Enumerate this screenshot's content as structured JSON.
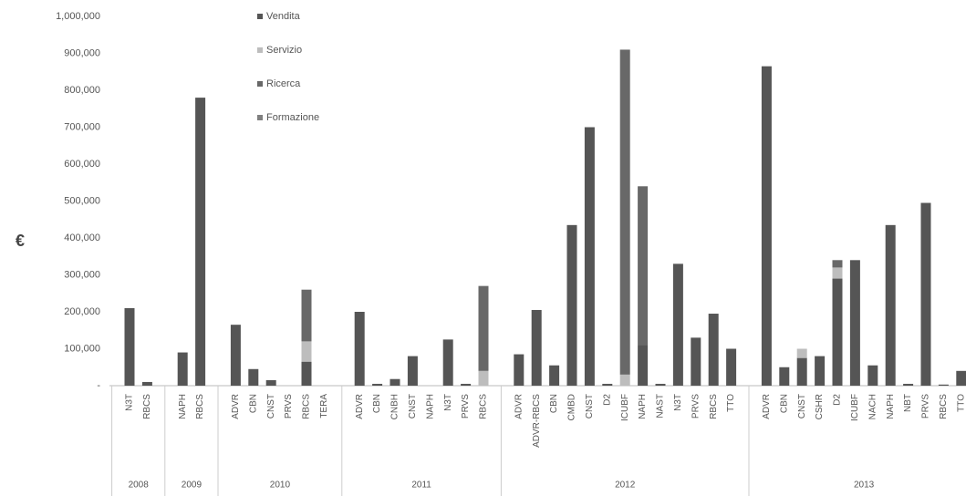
{
  "chart_data": {
    "type": "stacked-bar",
    "y_label": "€",
    "ylim": [
      0,
      1000000
    ],
    "yticks": [
      {
        "value": 0,
        "label": "-"
      },
      {
        "value": 100000,
        "label": "100,000"
      },
      {
        "value": 200000,
        "label": "200,000"
      },
      {
        "value": 300000,
        "label": "300,000"
      },
      {
        "value": 400000,
        "label": "400,000"
      },
      {
        "value": 500000,
        "label": "500,000"
      },
      {
        "value": 600000,
        "label": "600,000"
      },
      {
        "value": 700000,
        "label": "700,000"
      },
      {
        "value": 800000,
        "label": "800,000"
      },
      {
        "value": 900000,
        "label": "900,000"
      },
      {
        "value": 1000000,
        "label": "1,000,000"
      }
    ],
    "groups": [
      {
        "label": "2008",
        "categories": [
          "N3T",
          "RBCS"
        ]
      },
      {
        "label": "2009",
        "categories": [
          "NAPH",
          "RBCS"
        ]
      },
      {
        "label": "2010",
        "categories": [
          "ADVR",
          "CBN",
          "CNST",
          "PRVS",
          "RBCS",
          "TERA"
        ]
      },
      {
        "label": "2011",
        "categories": [
          "ADVR",
          "CBN",
          "CNBH",
          "CNST",
          "NAPH",
          "N3T",
          "PRVS",
          "RBCS"
        ]
      },
      {
        "label": "2012",
        "categories": [
          "ADVR",
          "ADVR-RBCS",
          "CBN",
          "CMBD",
          "CNST",
          "D2",
          "ICUBF",
          "NAPH",
          "NAST",
          "N3T",
          "PRVS",
          "RBCS",
          "TTO"
        ]
      },
      {
        "label": "2013",
        "categories": [
          "ADVR",
          "CBN",
          "CNST",
          "CSHR",
          "D2",
          "ICUBF",
          "NACH",
          "NAPH",
          "NBT",
          "PRVS",
          "RBCS",
          "TTO"
        ]
      }
    ],
    "series": [
      {
        "name": "Vendita",
        "color": "#555555",
        "values": [
          210000,
          10000,
          90000,
          780000,
          165000,
          45000,
          15000,
          0,
          65000,
          0,
          200000,
          5000,
          18000,
          80000,
          0,
          125000,
          5000,
          0,
          85000,
          205000,
          55000,
          435000,
          700000,
          5000,
          0,
          110000,
          5000,
          330000,
          130000,
          195000,
          100000,
          865000,
          50000,
          75000,
          80000,
          290000,
          340000,
          55000,
          435000,
          5000,
          495000,
          3000,
          40000
        ]
      },
      {
        "name": "Servizio",
        "color": "#bdbdbd",
        "values": [
          0,
          0,
          0,
          0,
          0,
          0,
          0,
          0,
          55000,
          0,
          0,
          0,
          0,
          0,
          0,
          0,
          0,
          40000,
          0,
          0,
          0,
          0,
          0,
          0,
          30000,
          0,
          0,
          0,
          0,
          0,
          0,
          0,
          0,
          25000,
          0,
          30000,
          0,
          0,
          0,
          0,
          0,
          0,
          0
        ]
      },
      {
        "name": "Ricerca",
        "color": "#686868",
        "values": [
          0,
          0,
          0,
          0,
          0,
          0,
          0,
          0,
          140000,
          0,
          0,
          0,
          0,
          0,
          0,
          0,
          0,
          230000,
          0,
          0,
          0,
          0,
          0,
          0,
          880000,
          430000,
          0,
          0,
          0,
          0,
          0,
          0,
          0,
          0,
          0,
          20000,
          0,
          0,
          0,
          0,
          0,
          0,
          0
        ]
      },
      {
        "name": "Formazione",
        "color": "#808080",
        "values": [
          0,
          0,
          0,
          0,
          0,
          0,
          0,
          0,
          0,
          0,
          0,
          0,
          0,
          0,
          0,
          0,
          0,
          0,
          0,
          0,
          0,
          0,
          0,
          0,
          0,
          0,
          0,
          0,
          0,
          0,
          0,
          0,
          0,
          0,
          0,
          0,
          0,
          0,
          0,
          0,
          0,
          0,
          0
        ]
      }
    ]
  }
}
